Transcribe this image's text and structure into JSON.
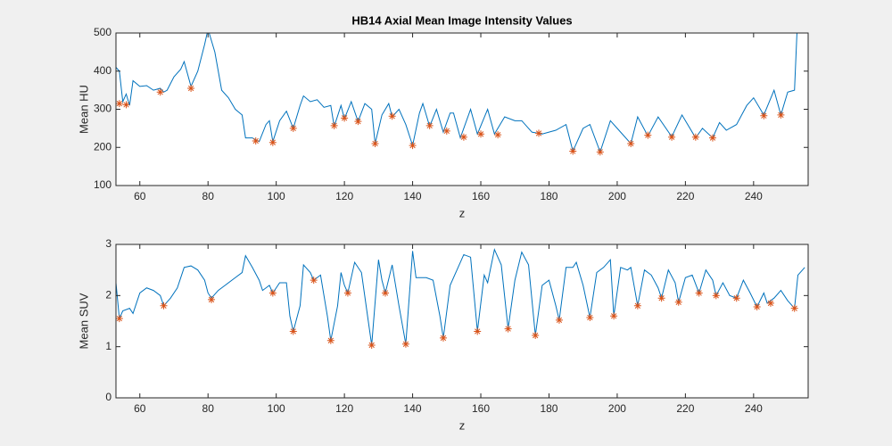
{
  "chart_data": [
    {
      "type": "line",
      "title": "HB14 Axial Mean Image Intensity Values",
      "x_label": "z",
      "y_label": "Mean HU",
      "xlim": [
        53,
        256
      ],
      "ylim": [
        100,
        500
      ],
      "xticks": [
        60,
        80,
        100,
        120,
        140,
        160,
        180,
        200,
        220,
        240
      ],
      "yticks": [
        100,
        200,
        300,
        400,
        500
      ],
      "series": [
        {
          "type": "line",
          "color": "#0072bd",
          "x": [
            53,
            54,
            55,
            56,
            57,
            58,
            60,
            62,
            64,
            66,
            67,
            68,
            70,
            72,
            73,
            75,
            77,
            79,
            80,
            82,
            84,
            86,
            88,
            90,
            91,
            93,
            95,
            97,
            98,
            99,
            101,
            103,
            105,
            107,
            108,
            110,
            112,
            114,
            116,
            117,
            119,
            120,
            122,
            124,
            126,
            128,
            129,
            131,
            133,
            134,
            136,
            138,
            140,
            142,
            143,
            145,
            147,
            149,
            151,
            152,
            154,
            157,
            159,
            162,
            164,
            167,
            170,
            172,
            175,
            178,
            182,
            185,
            187,
            190,
            192,
            195,
            198,
            200,
            204,
            206,
            209,
            212,
            216,
            219,
            223,
            225,
            228,
            230,
            232,
            235,
            238,
            240,
            243,
            246,
            248,
            250,
            252,
            253
          ],
          "values": [
            410,
            400,
            320,
            340,
            310,
            375,
            360,
            362,
            350,
            355,
            345,
            350,
            385,
            405,
            425,
            360,
            400,
            470,
            510,
            450,
            350,
            330,
            300,
            285,
            225,
            225,
            215,
            260,
            270,
            215,
            270,
            295,
            250,
            310,
            335,
            320,
            325,
            305,
            310,
            255,
            310,
            275,
            320,
            268,
            315,
            300,
            210,
            285,
            315,
            280,
            300,
            260,
            205,
            290,
            315,
            255,
            300,
            240,
            290,
            290,
            225,
            300,
            235,
            300,
            235,
            280,
            270,
            270,
            240,
            235,
            245,
            260,
            190,
            250,
            260,
            188,
            270,
            250,
            210,
            280,
            230,
            280,
            228,
            285,
            225,
            250,
            225,
            265,
            245,
            260,
            310,
            330,
            285,
            350,
            285,
            345,
            350,
            560
          ]
        },
        {
          "type": "scatter",
          "color": "#d95319",
          "x": [
            54,
            56,
            66,
            75,
            94,
            99,
            105,
            117,
            120,
            124,
            129,
            134,
            140,
            145,
            150,
            155,
            160,
            165,
            177,
            187,
            195,
            204,
            209,
            216,
            223,
            228,
            243,
            248
          ],
          "values": [
            315,
            312,
            345,
            355,
            217,
            213,
            250,
            257,
            277,
            268,
            210,
            282,
            205,
            257,
            243,
            227,
            235,
            233,
            237,
            190,
            188,
            210,
            232,
            227,
            227,
            225,
            283,
            285
          ]
        }
      ]
    },
    {
      "type": "line",
      "x_label": "z",
      "y_label": "Mean SUV",
      "xlim": [
        53,
        256
      ],
      "ylim": [
        0,
        3
      ],
      "xticks": [
        60,
        80,
        100,
        120,
        140,
        160,
        180,
        200,
        220,
        240
      ],
      "yticks": [
        0,
        1,
        2,
        3
      ],
      "series": [
        {
          "type": "line",
          "color": "#0072bd",
          "x": [
            53,
            54,
            55,
            57,
            58,
            60,
            62,
            64,
            66,
            67,
            69,
            71,
            73,
            75,
            77,
            79,
            80,
            81,
            83,
            85,
            88,
            90,
            91,
            93,
            95,
            96,
            98,
            99,
            101,
            103,
            104,
            105,
            107,
            108,
            110,
            111,
            113,
            115,
            116,
            118,
            119,
            120,
            121,
            123,
            125,
            127,
            128,
            130,
            131,
            132,
            134,
            136,
            138,
            140,
            141,
            144,
            146,
            148,
            149,
            151,
            153,
            155,
            157,
            159,
            161,
            162,
            164,
            166,
            168,
            170,
            172,
            174,
            176,
            178,
            180,
            182,
            183,
            185,
            187,
            188,
            190,
            192,
            194,
            196,
            198,
            199,
            201,
            203,
            204,
            206,
            208,
            210,
            212,
            213,
            215,
            217,
            218,
            220,
            222,
            224,
            226,
            228,
            229,
            231,
            233,
            235,
            237,
            239,
            241,
            243,
            244,
            246,
            248,
            250,
            252,
            253,
            255
          ],
          "values": [
            2.25,
            1.55,
            1.7,
            1.75,
            1.65,
            2.05,
            2.15,
            2.1,
            2.0,
            1.8,
            1.95,
            2.15,
            2.55,
            2.58,
            2.5,
            2.3,
            2.05,
            1.95,
            2.1,
            2.2,
            2.35,
            2.45,
            2.78,
            2.55,
            2.3,
            2.1,
            2.2,
            2.05,
            2.25,
            2.25,
            1.6,
            1.3,
            1.8,
            2.6,
            2.45,
            2.3,
            2.4,
            1.6,
            1.12,
            1.8,
            2.45,
            2.2,
            2.05,
            2.65,
            2.45,
            1.5,
            1.03,
            2.7,
            2.3,
            2.05,
            2.6,
            1.8,
            1.05,
            2.87,
            2.35,
            2.35,
            2.3,
            1.6,
            1.17,
            2.2,
            2.5,
            2.8,
            2.75,
            1.3,
            2.4,
            2.25,
            2.9,
            2.6,
            1.35,
            2.3,
            2.85,
            2.6,
            1.22,
            2.2,
            2.3,
            1.8,
            1.52,
            2.55,
            2.55,
            2.65,
            2.2,
            1.57,
            2.45,
            2.55,
            2.7,
            1.6,
            2.55,
            2.5,
            2.55,
            1.8,
            2.5,
            2.4,
            2.15,
            1.95,
            2.5,
            2.25,
            1.87,
            2.35,
            2.4,
            2.05,
            2.5,
            2.3,
            2.0,
            2.25,
            2.0,
            1.95,
            2.3,
            2.05,
            1.78,
            2.05,
            1.85,
            1.95,
            2.1,
            1.9,
            1.75,
            2.4,
            2.55
          ]
        },
        {
          "type": "scatter",
          "color": "#d95319",
          "x": [
            54,
            67,
            81,
            99,
            105,
            111,
            116,
            121,
            128,
            132,
            138,
            149,
            159,
            168,
            176,
            183,
            192,
            199,
            206,
            213,
            218,
            224,
            229,
            235,
            241,
            245,
            252
          ],
          "values": [
            1.55,
            1.8,
            1.92,
            2.05,
            1.3,
            2.3,
            1.12,
            2.05,
            1.03,
            2.05,
            1.05,
            1.17,
            1.3,
            1.35,
            1.22,
            1.52,
            1.57,
            1.6,
            1.8,
            1.95,
            1.87,
            2.05,
            2.0,
            1.95,
            1.78,
            1.85,
            1.75
          ]
        }
      ]
    }
  ]
}
